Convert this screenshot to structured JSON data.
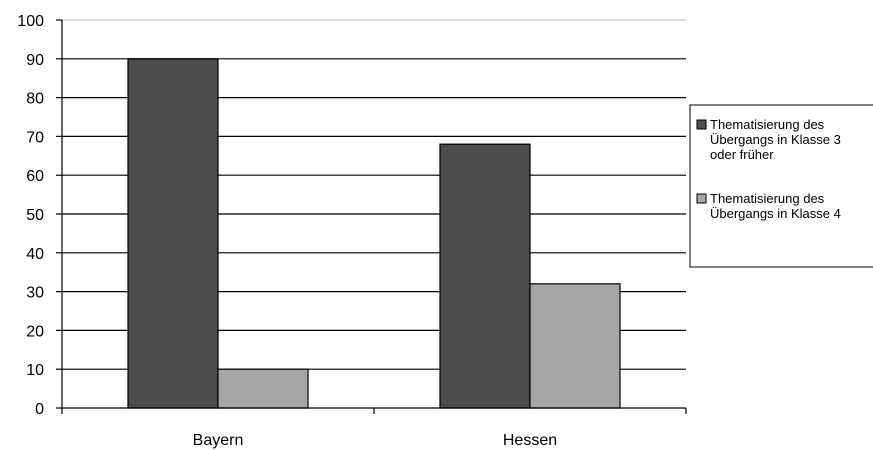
{
  "chart_data": {
    "type": "bar",
    "title": "",
    "xlabel": "",
    "ylabel": "",
    "categories": [
      "Bayern",
      "Hessen"
    ],
    "ylim": [
      0,
      100
    ],
    "yticks": [
      0,
      10,
      20,
      30,
      40,
      50,
      60,
      70,
      80,
      90,
      100
    ],
    "grid": true,
    "legend_position": "right",
    "series": [
      {
        "name": "Thematisierung des Übergangs in Klasse 3 oder früher",
        "name_lines": [
          "Thematisierung des",
          "Übergangs in Klasse 3",
          "oder früher"
        ],
        "color": "#4d4d4d",
        "values": [
          90,
          68
        ]
      },
      {
        "name": "Thematisierung des Übergangs in Klasse 4",
        "name_lines": [
          "Thematisierung des",
          "Übergangs in Klasse 4"
        ],
        "color": "#a6a6a6",
        "values": [
          10,
          32
        ]
      }
    ]
  }
}
